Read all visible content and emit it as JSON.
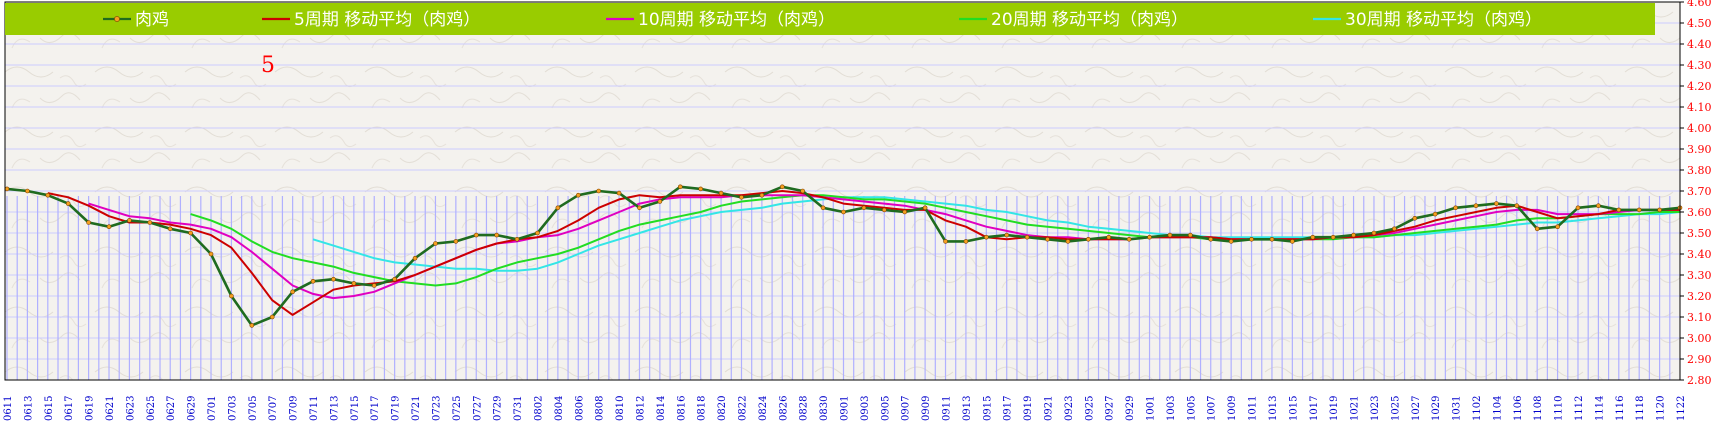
{
  "chart_data": {
    "type": "line",
    "title": "",
    "annotation": "5",
    "xlabel": "",
    "ylabel": "",
    "ylim": [
      2.8,
      4.6
    ],
    "y_ticks": [
      "4.60",
      "4.50",
      "4.40",
      "4.30",
      "4.20",
      "4.10",
      "4.00",
      "3.90",
      "3.80",
      "3.70",
      "3.60",
      "3.50",
      "3.40",
      "3.30",
      "3.20",
      "3.10",
      "3.00",
      "2.90",
      "2.80"
    ],
    "y_axis_side": "right",
    "grid": true,
    "legend_position": "top",
    "x": [
      "0611",
      "0613",
      "0615",
      "0617",
      "0619",
      "0621",
      "0623",
      "0625",
      "0627",
      "0629",
      "0701",
      "0703",
      "0705",
      "0707",
      "0709",
      "0711",
      "0713",
      "0715",
      "0717",
      "0719",
      "0721",
      "0723",
      "0725",
      "0727",
      "0729",
      "0731",
      "0802",
      "0804",
      "0806",
      "0808",
      "0810",
      "0812",
      "0814",
      "0816",
      "0818",
      "0820",
      "0822",
      "0824",
      "0826",
      "0828",
      "0830",
      "0901",
      "0903",
      "0905",
      "0907",
      "0909",
      "0911",
      "0913",
      "0915",
      "0917",
      "0919",
      "0921",
      "0923",
      "0925",
      "0927",
      "0929",
      "1001",
      "1003",
      "1005",
      "1007",
      "1009",
      "1011",
      "1013",
      "1015",
      "1017",
      "1019",
      "1021",
      "1023",
      "1025",
      "1027",
      "1029",
      "1031",
      "1102",
      "1104",
      "1106",
      "1108",
      "1110",
      "1112",
      "1114",
      "1116",
      "1118",
      "1120",
      "1122"
    ],
    "series": [
      {
        "name": "肉鸡",
        "color": "#1f6b1f",
        "values": [
          3.71,
          3.7,
          3.68,
          3.64,
          3.55,
          3.53,
          3.56,
          3.55,
          3.52,
          3.5,
          3.4,
          3.2,
          3.06,
          3.1,
          3.22,
          3.27,
          3.28,
          3.26,
          3.25,
          3.28,
          3.38,
          3.45,
          3.46,
          3.49,
          3.49,
          3.47,
          3.5,
          3.62,
          3.68,
          3.7,
          3.69,
          3.62,
          3.65,
          3.72,
          3.71,
          3.69,
          3.67,
          3.68,
          3.72,
          3.7,
          3.62,
          3.6,
          3.62,
          3.61,
          3.6,
          3.62,
          3.46,
          3.46,
          3.48,
          3.49,
          3.48,
          3.47,
          3.46,
          3.47,
          3.48,
          3.47,
          3.48,
          3.49,
          3.49,
          3.47,
          3.46,
          3.47,
          3.47,
          3.46,
          3.48,
          3.48,
          3.49,
          3.5,
          3.52,
          3.57,
          3.59,
          3.62,
          3.63,
          3.64,
          3.63,
          3.52,
          3.53,
          3.62,
          3.63,
          3.61,
          3.61,
          3.61,
          3.62
        ]
      },
      {
        "name": "5周期 移动平均（肉鸡）",
        "color": "#cc0000",
        "values": [
          null,
          null,
          3.69,
          3.67,
          3.63,
          3.58,
          3.55,
          3.55,
          3.54,
          3.52,
          3.49,
          3.43,
          3.31,
          3.18,
          3.11,
          3.17,
          3.23,
          3.25,
          3.26,
          3.27,
          3.3,
          3.34,
          3.38,
          3.42,
          3.45,
          3.47,
          3.48,
          3.51,
          3.56,
          3.62,
          3.66,
          3.68,
          3.67,
          3.68,
          3.68,
          3.68,
          3.68,
          3.69,
          3.7,
          3.69,
          3.67,
          3.64,
          3.63,
          3.62,
          3.61,
          3.61,
          3.56,
          3.53,
          3.48,
          3.47,
          3.48,
          3.48,
          3.47,
          3.47,
          3.47,
          3.47,
          3.48,
          3.48,
          3.48,
          3.48,
          3.47,
          3.47,
          3.47,
          3.47,
          3.47,
          3.48,
          3.48,
          3.49,
          3.51,
          3.53,
          3.56,
          3.58,
          3.6,
          3.62,
          3.63,
          3.6,
          3.57,
          3.58,
          3.59,
          3.61,
          3.61,
          3.61,
          3.61
        ]
      },
      {
        "name": "10周期 移动平均（肉鸡）",
        "color": "#e000c0",
        "values": [
          null,
          null,
          null,
          null,
          3.64,
          3.61,
          3.58,
          3.57,
          3.55,
          3.54,
          3.52,
          3.48,
          3.41,
          3.33,
          3.25,
          3.21,
          3.19,
          3.2,
          3.22,
          3.26,
          3.3,
          3.34,
          3.38,
          3.42,
          3.45,
          3.46,
          3.48,
          3.49,
          3.52,
          3.56,
          3.6,
          3.64,
          3.66,
          3.67,
          3.67,
          3.67,
          3.68,
          3.68,
          3.68,
          3.68,
          3.67,
          3.66,
          3.65,
          3.64,
          3.63,
          3.61,
          3.59,
          3.56,
          3.53,
          3.51,
          3.49,
          3.48,
          3.48,
          3.47,
          3.47,
          3.47,
          3.48,
          3.48,
          3.48,
          3.48,
          3.47,
          3.47,
          3.47,
          3.47,
          3.47,
          3.48,
          3.48,
          3.49,
          3.5,
          3.52,
          3.54,
          3.56,
          3.58,
          3.6,
          3.61,
          3.61,
          3.59,
          3.59,
          3.59,
          3.6,
          3.61,
          3.61,
          3.61
        ]
      },
      {
        "name": "20周期 移动平均（肉鸡）",
        "color": "#22dd22",
        "values": [
          null,
          null,
          null,
          null,
          null,
          null,
          null,
          null,
          null,
          3.59,
          3.56,
          3.52,
          3.46,
          3.41,
          3.38,
          3.36,
          3.34,
          3.31,
          3.29,
          3.27,
          3.26,
          3.25,
          3.26,
          3.29,
          3.33,
          3.36,
          3.38,
          3.4,
          3.43,
          3.47,
          3.51,
          3.54,
          3.56,
          3.58,
          3.6,
          3.63,
          3.65,
          3.66,
          3.67,
          3.68,
          3.68,
          3.67,
          3.66,
          3.66,
          3.65,
          3.64,
          3.62,
          3.6,
          3.58,
          3.56,
          3.54,
          3.53,
          3.52,
          3.51,
          3.5,
          3.49,
          3.48,
          3.48,
          3.48,
          3.47,
          3.47,
          3.47,
          3.47,
          3.47,
          3.47,
          3.47,
          3.48,
          3.48,
          3.49,
          3.5,
          3.51,
          3.52,
          3.53,
          3.54,
          3.56,
          3.57,
          3.57,
          3.58,
          3.59,
          3.59,
          3.59,
          3.6,
          3.6
        ]
      },
      {
        "name": "30周期 移动平均（肉鸡）",
        "color": "#33e6e6",
        "values": [
          null,
          null,
          null,
          null,
          null,
          null,
          null,
          null,
          null,
          null,
          null,
          null,
          null,
          null,
          null,
          3.47,
          3.44,
          3.41,
          3.38,
          3.36,
          3.35,
          3.34,
          3.33,
          3.33,
          3.32,
          3.32,
          3.33,
          3.36,
          3.4,
          3.44,
          3.47,
          3.5,
          3.53,
          3.56,
          3.58,
          3.6,
          3.61,
          3.62,
          3.64,
          3.65,
          3.66,
          3.67,
          3.67,
          3.67,
          3.66,
          3.65,
          3.64,
          3.63,
          3.61,
          3.6,
          3.58,
          3.56,
          3.55,
          3.53,
          3.52,
          3.51,
          3.5,
          3.49,
          3.49,
          3.48,
          3.48,
          3.48,
          3.48,
          3.48,
          3.48,
          3.48,
          3.48,
          3.48,
          3.49,
          3.49,
          3.5,
          3.51,
          3.52,
          3.53,
          3.54,
          3.55,
          3.55,
          3.56,
          3.57,
          3.58,
          3.59,
          3.59,
          3.6
        ]
      }
    ]
  },
  "colors": {
    "legend_background": "#99cc00",
    "volume_bars": "#b0b0ff",
    "axis_text": "#ff0000",
    "date_text": "#0000cc",
    "gridline": "#ccccff"
  }
}
